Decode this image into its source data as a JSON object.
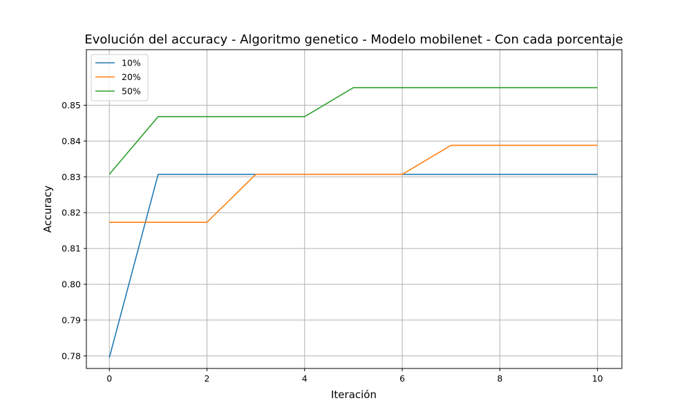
{
  "chart_data": {
    "type": "line",
    "title": "Evolución del accuracy - Algoritmo genetico - Modelo mobilenet - Con cada porcentaje",
    "xlabel": "Iteración",
    "ylabel": "Accuracy",
    "x": [
      0,
      1,
      2,
      3,
      4,
      5,
      6,
      7,
      8,
      9,
      10
    ],
    "xlim": [
      -0.47,
      10.5
    ],
    "ylim": [
      0.7765,
      0.8655
    ],
    "xticks": [
      0,
      2,
      4,
      6,
      8,
      10
    ],
    "xtick_labels": [
      "0",
      "2",
      "4",
      "6",
      "8",
      "10"
    ],
    "yticks": [
      0.78,
      0.79,
      0.8,
      0.81,
      0.82,
      0.83,
      0.84,
      0.85
    ],
    "ytick_labels": [
      "0.78",
      "0.79",
      "0.80",
      "0.81",
      "0.82",
      "0.83",
      "0.84",
      "0.85"
    ],
    "grid": true,
    "legend_position": "top-left",
    "series": [
      {
        "name": "10%",
        "color": "#1f77b4",
        "values": [
          0.7795,
          0.8307,
          0.8307,
          0.8307,
          0.8307,
          0.8307,
          0.8307,
          0.8307,
          0.8307,
          0.8307,
          0.8307
        ]
      },
      {
        "name": "20%",
        "color": "#ff7f0e",
        "values": [
          0.8173,
          0.8173,
          0.8173,
          0.8307,
          0.8307,
          0.8307,
          0.8307,
          0.8388,
          0.8388,
          0.8388,
          0.8388
        ]
      },
      {
        "name": "50%",
        "color": "#2ca02c",
        "values": [
          0.8307,
          0.8468,
          0.8468,
          0.8468,
          0.8468,
          0.8549,
          0.8549,
          0.8549,
          0.8549,
          0.8549,
          0.8549
        ]
      }
    ]
  }
}
